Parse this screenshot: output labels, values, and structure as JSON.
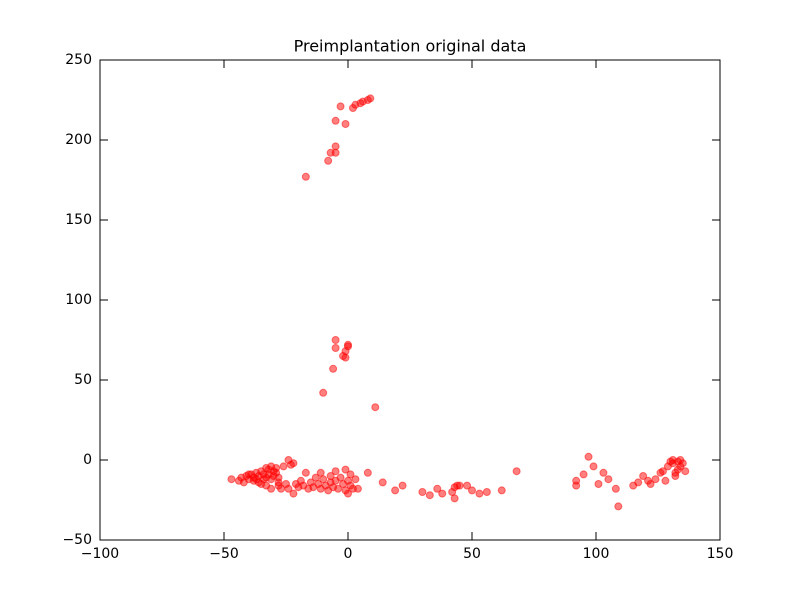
{
  "chart_data": {
    "type": "scatter",
    "title": "Preimplantation original data",
    "color": "#ff0000",
    "xlim": [
      -100,
      150
    ],
    "ylim": [
      -50,
      250
    ],
    "xticks": [
      {
        "value": -100,
        "label": "−100"
      },
      {
        "value": -50,
        "label": "−50"
      },
      0,
      50,
      100,
      150
    ],
    "yticks": [
      {
        "value": -50,
        "label": "−50"
      },
      0,
      50,
      100,
      150,
      200,
      250
    ],
    "x": [
      -17,
      -8,
      -7,
      -5,
      -5,
      -5,
      -3,
      -1,
      2,
      3,
      5,
      6,
      8,
      9,
      -5,
      -5,
      -2,
      -1,
      -1,
      0,
      0,
      -6,
      -10,
      11,
      68,
      92,
      92,
      95,
      97,
      99,
      101,
      103,
      105,
      108,
      109,
      115,
      117,
      119,
      121,
      122,
      124,
      126,
      127,
      128,
      130,
      131,
      132,
      133,
      134,
      134,
      135,
      136,
      131,
      132,
      129,
      133,
      8,
      14,
      19,
      22,
      30,
      33,
      36,
      38,
      42,
      43,
      43,
      44,
      45,
      48,
      50,
      53,
      56,
      62,
      -47,
      -44,
      -43,
      -42,
      -41,
      -40,
      -39,
      -38,
      -38,
      -37,
      -36,
      -36,
      -35,
      -34,
      -34,
      -33,
      -33,
      -32,
      -32,
      -31,
      -31,
      -30,
      -30,
      -29,
      -29,
      -28,
      -28,
      -31,
      -33,
      -28,
      -26,
      -25,
      -24,
      -23,
      -22,
      -24,
      -22,
      -21,
      -20,
      -19,
      -18,
      -17,
      -16,
      -15,
      -14,
      -13,
      -12,
      -11,
      -11,
      -10,
      -9,
      -8,
      -7,
      -7,
      -6,
      -5,
      -5,
      -4,
      -3,
      -2,
      -1,
      -1,
      0,
      0,
      1,
      1,
      2,
      3,
      4,
      -27,
      -35,
      -40,
      -37
    ],
    "values": [
      177,
      187,
      192,
      192,
      196,
      212,
      221,
      210,
      220,
      222,
      223,
      224,
      225,
      226,
      75,
      70,
      65,
      64,
      68,
      71,
      72,
      57,
      42,
      33,
      -7,
      -16,
      -13,
      -9,
      2,
      -4,
      -15,
      -8,
      -12,
      -18,
      -29,
      -16,
      -14,
      -10,
      -13,
      -15,
      -12,
      -8,
      -7,
      -13,
      -1,
      -2,
      -8,
      -1,
      0,
      -4,
      -2,
      -7,
      0,
      -10,
      -4,
      -6,
      -8,
      -14,
      -19,
      -16,
      -20,
      -22,
      -18,
      -21,
      -20,
      -24,
      -17,
      -16,
      -16,
      -16,
      -19,
      -21,
      -20,
      -19,
      -12,
      -13,
      -11,
      -14,
      -10,
      -12,
      -9,
      -11,
      -13,
      -8,
      -10,
      -14,
      -7,
      -9,
      -12,
      -5,
      -11,
      -6,
      -9,
      -4,
      -12,
      -7,
      -10,
      -5,
      -8,
      -11,
      -14,
      -18,
      -16,
      -16,
      -4,
      -15,
      -18,
      -3,
      -21,
      0,
      -2,
      -15,
      -17,
      -13,
      -16,
      -8,
      -18,
      -14,
      -17,
      -11,
      -15,
      -8,
      -18,
      -12,
      -16,
      -19,
      -10,
      -14,
      -17,
      -7,
      -13,
      -18,
      -11,
      -15,
      -6,
      -19,
      -13,
      -21,
      -9,
      -16,
      -18,
      -12,
      -18,
      -18,
      -15,
      -9,
      -12
    ]
  }
}
